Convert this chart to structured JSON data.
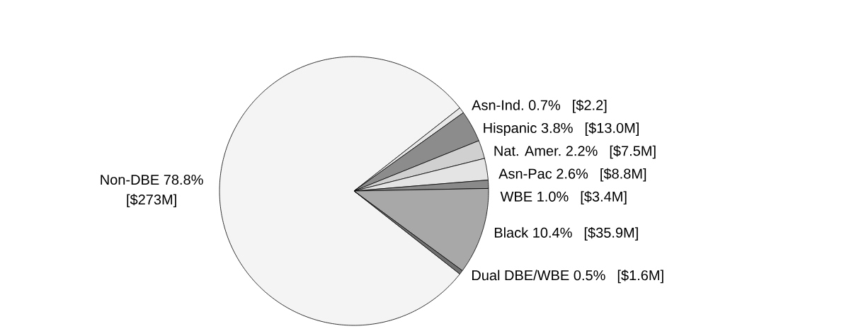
{
  "chart_data": {
    "type": "pie",
    "categories": [
      "Non-DBE",
      "Asn-Ind.",
      "Hispanic",
      "Nat. Amer.",
      "Asn-Pac",
      "WBE",
      "Black",
      "Dual DBE/WBE"
    ],
    "values": [
      78.8,
      0.7,
      3.8,
      2.2,
      2.6,
      1.0,
      10.4,
      0.5
    ],
    "value_labels": [
      "78.8%",
      "0.7%",
      "3.8%",
      "2.2%",
      "2.6%",
      "1.0%",
      "10.4%",
      "0.5%"
    ],
    "colors": [
      "#f4f4f4",
      "#e8e8e8",
      "#8c8c8c",
      "#d0d0d0",
      "#e4e4e4",
      "#8a8a8a",
      "#a8a8a8",
      "#707070"
    ],
    "annotations": [
      "[$273M]",
      "[$2.2]",
      "[$13.0M]",
      "[$7.5M]",
      "[$8.8M]",
      "[$3.4M]",
      "[$35.9M]",
      "[$1.6M]"
    ]
  }
}
